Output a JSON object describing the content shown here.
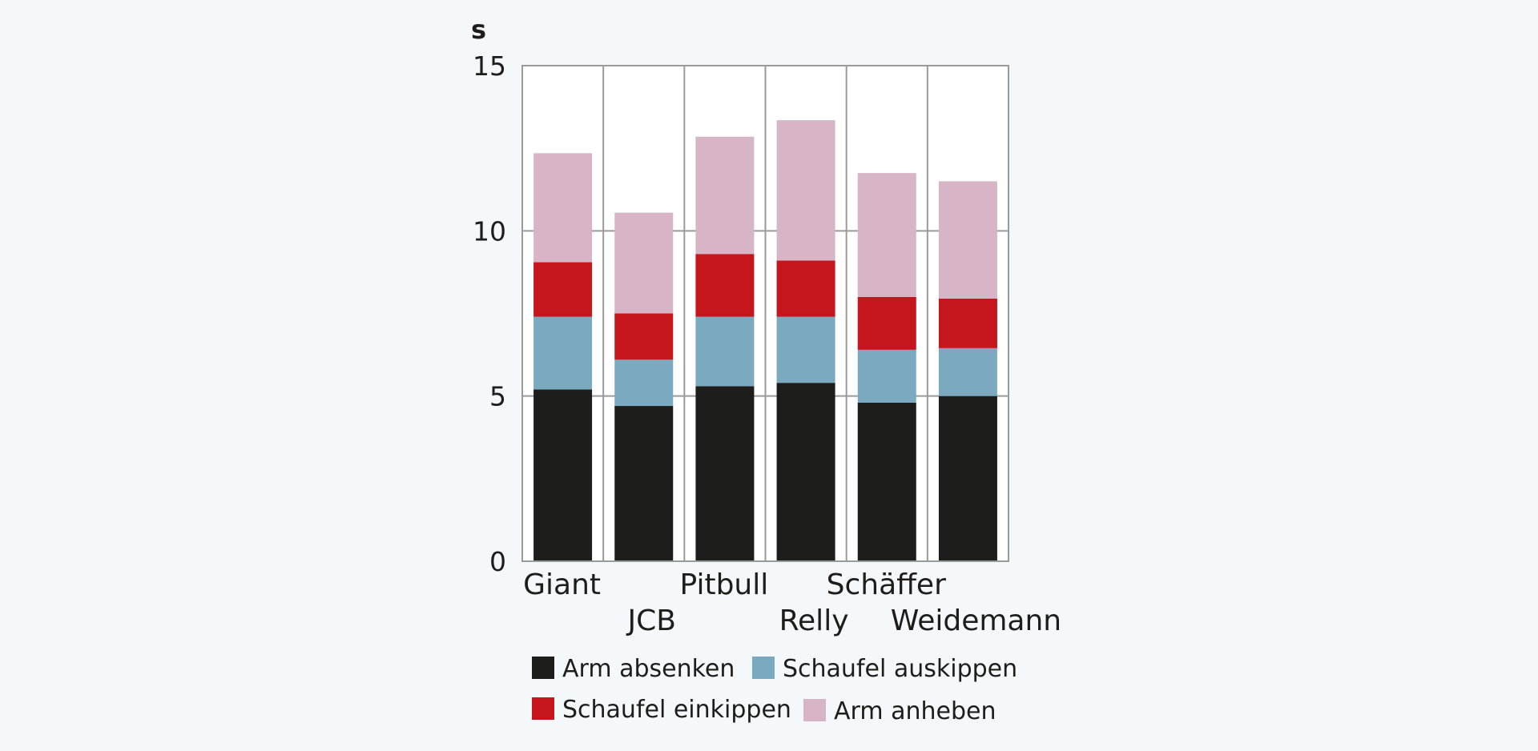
{
  "chart_data": {
    "type": "bar",
    "stacked": true,
    "ylabel": "s",
    "ylim": [
      0,
      15
    ],
    "yticks": [
      0,
      5,
      10,
      15
    ],
    "grid": true,
    "legend_position": "bottom",
    "categories": [
      "Giant",
      "JCB",
      "Pitbull",
      "Relly",
      "Schäffer",
      "Weidemann"
    ],
    "series": [
      {
        "name": "Arm absenken",
        "color": "#1d1d1b",
        "values": [
          5.2,
          4.7,
          5.3,
          5.4,
          4.8,
          5.0
        ]
      },
      {
        "name": "Schaufel auskippen",
        "color": "#7aa9c0",
        "values": [
          2.2,
          1.4,
          2.1,
          2.0,
          1.6,
          1.45
        ]
      },
      {
        "name": "Schaufel einkippen",
        "color": "#c4161c",
        "values": [
          1.65,
          1.4,
          1.9,
          1.7,
          1.6,
          1.5
        ]
      },
      {
        "name": "Arm anheben",
        "color": "#d7b5c6",
        "values": [
          3.3,
          3.05,
          3.55,
          4.25,
          3.75,
          3.55
        ]
      }
    ],
    "legend_order": [
      "Arm absenken",
      "Schaufel auskippen",
      "Schaufel einkippen",
      "Arm anheben"
    ]
  }
}
